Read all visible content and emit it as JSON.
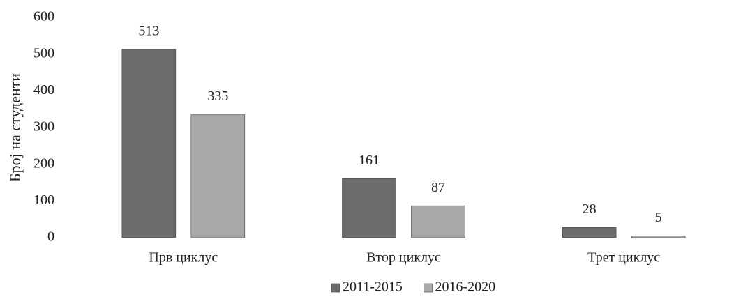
{
  "chart_data": {
    "type": "bar",
    "y_label": "Број на студенти",
    "categories": [
      "Прв циклус",
      "Втор циклус",
      "Трет циклус"
    ],
    "series": [
      {
        "name": "2011-2015",
        "color": "#6b6b6b",
        "values": [
          513,
          161,
          28
        ]
      },
      {
        "name": "2016-2020",
        "color": "#a8a8a8",
        "values": [
          335,
          87,
          5
        ]
      }
    ],
    "ylim": [
      0,
      600
    ],
    "yticks": [
      0,
      100,
      200,
      300,
      400,
      500,
      600
    ],
    "grid": false,
    "legend": "bottom"
  }
}
